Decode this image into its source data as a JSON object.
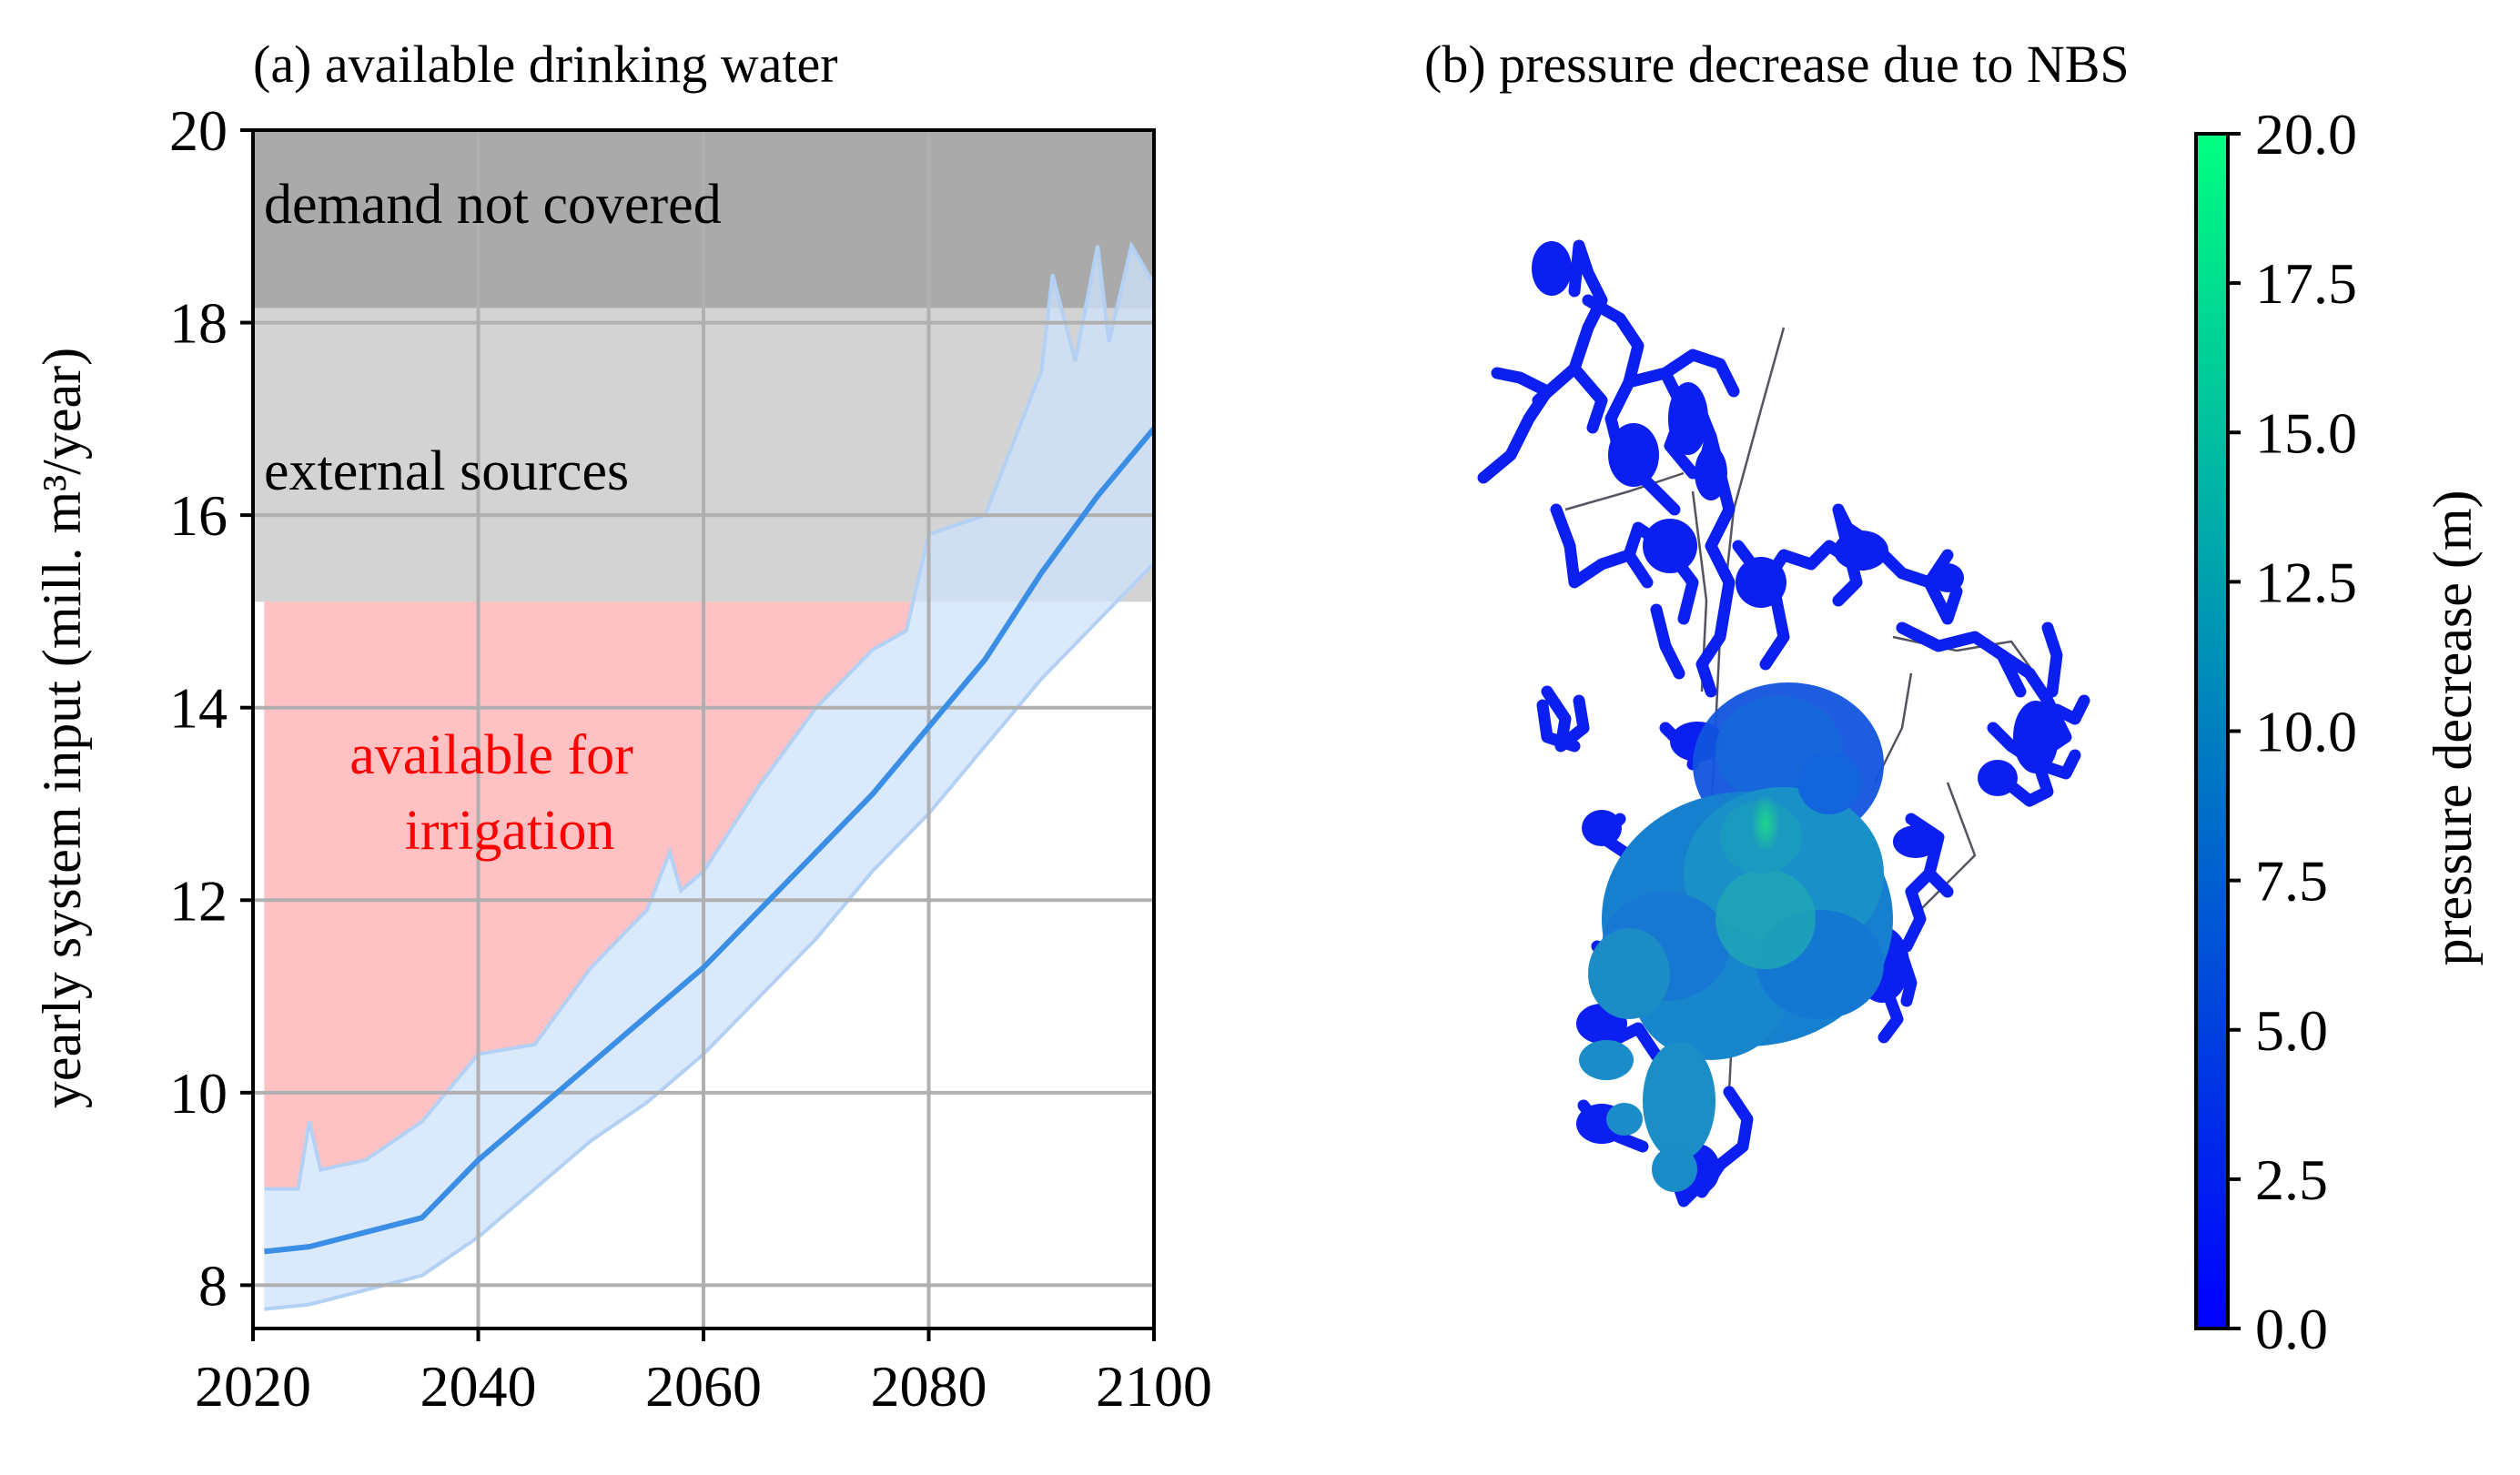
{
  "chart_data": [
    {
      "type": "area",
      "title": "(a) available drinking water",
      "xlabel": "",
      "ylabel": "yearly system input (mill. m³/year)",
      "xlim": [
        2020,
        2100
      ],
      "ylim": [
        7.55,
        20
      ],
      "xticks": [
        2020,
        2040,
        2060,
        2080,
        2100
      ],
      "yticks": [
        8,
        10,
        12,
        14,
        16,
        18,
        20
      ],
      "grid": true,
      "regions": [
        {
          "name": "demand not covered",
          "y_from": 18.15,
          "y_to": 20,
          "color": "#aaaaaa"
        },
        {
          "name": "external sources",
          "y_from": 15.1,
          "y_to": 18.15,
          "color": "#d3d3d3"
        },
        {
          "name": "available for irrigation",
          "color": "#ffbfc1",
          "y_top": 15.1,
          "bounded_below_by": "upper band"
        }
      ],
      "annotations": {
        "demand": "demand not covered",
        "external": "external sources",
        "irrigation_line1": "available for",
        "irrigation_line2": "irrigation"
      },
      "colors": {
        "median": "#3a8ee6",
        "band_fill": "#cfe2fb",
        "band_edge": "#b3d0f5",
        "irrigation_text": "#ff0000"
      },
      "series": [
        {
          "name": "median",
          "x": [
            2021,
            2025,
            2030,
            2035,
            2040,
            2045,
            2050,
            2055,
            2060,
            2065,
            2070,
            2075,
            2080,
            2085,
            2090,
            2095,
            2100
          ],
          "values": [
            8.35,
            8.4,
            8.55,
            8.7,
            9.3,
            9.8,
            10.3,
            10.8,
            11.3,
            11.9,
            12.5,
            13.1,
            13.8,
            14.5,
            15.4,
            16.2,
            16.9
          ]
        },
        {
          "name": "upper band",
          "x": [
            2021,
            2024,
            2025,
            2026,
            2030,
            2035,
            2040,
            2045,
            2050,
            2055,
            2057,
            2058,
            2060,
            2065,
            2070,
            2075,
            2078,
            2080,
            2085,
            2090,
            2091,
            2093,
            2095,
            2096,
            2098,
            2100
          ],
          "values": [
            9.0,
            9.0,
            9.7,
            9.2,
            9.3,
            9.7,
            10.4,
            10.5,
            11.3,
            11.9,
            12.5,
            12.1,
            12.3,
            13.2,
            14.0,
            14.6,
            14.8,
            15.8,
            16.0,
            17.5,
            18.5,
            17.6,
            18.8,
            17.8,
            18.8,
            18.4
          ]
        },
        {
          "name": "lower band",
          "x": [
            2021,
            2025,
            2030,
            2035,
            2040,
            2045,
            2050,
            2055,
            2060,
            2065,
            2070,
            2075,
            2080,
            2085,
            2090,
            2095,
            2100
          ],
          "values": [
            7.75,
            7.8,
            7.95,
            8.1,
            8.5,
            9.0,
            9.5,
            9.9,
            10.4,
            11.0,
            11.6,
            12.3,
            12.9,
            13.6,
            14.3,
            14.9,
            15.5
          ]
        }
      ]
    },
    {
      "type": "scatter",
      "title": "(b) pressure decrease due to NBS",
      "colorbar": {
        "label": "pressure decrease (m)",
        "min": 0.0,
        "max": 20.0,
        "ticks": [
          "0.0",
          "2.5",
          "5.0",
          "7.5",
          "10.0",
          "12.5",
          "15.0",
          "17.5",
          "20.0"
        ],
        "colormap": "winter",
        "color_low": "#0000ff",
        "color_high": "#00ff80"
      }
    }
  ]
}
